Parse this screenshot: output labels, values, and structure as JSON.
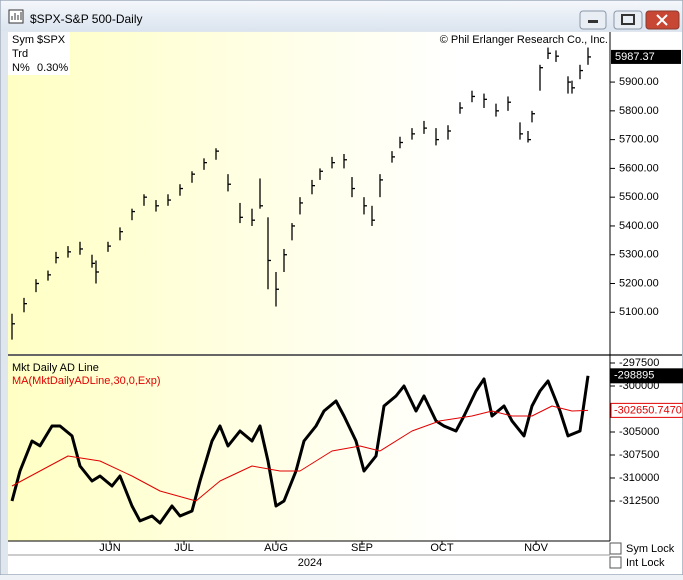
{
  "window": {
    "title": "$SPX-S&P 500-Daily"
  },
  "info": [
    [
      "Sym",
      "$SPX"
    ],
    [
      "Trd"
    ],
    [
      "N%",
      "0.30%"
    ]
  ],
  "copyright": "© Phil Erlanger Research Co., Inc.",
  "checkboxes": [
    "Sym Lock",
    "Int Lock"
  ],
  "chart_data": [
    {
      "type": "ohlc",
      "color": "#000000",
      "x": [
        0,
        3,
        6,
        9,
        11,
        14,
        17,
        20,
        21,
        24,
        27,
        30,
        33,
        36,
        39,
        42,
        45,
        48,
        51,
        54,
        57,
        60,
        62,
        64,
        66,
        68,
        70,
        72,
        75,
        77,
        80,
        83,
        85,
        88,
        90,
        92,
        95,
        97,
        100,
        103,
        106,
        109,
        112,
        115,
        118,
        121,
        124,
        127,
        129,
        130,
        132,
        134,
        136,
        139,
        140,
        142,
        144
      ],
      "high": [
        5095,
        5150,
        5215,
        5245,
        5310,
        5330,
        5345,
        5300,
        5280,
        5345,
        5395,
        5460,
        5510,
        5490,
        5510,
        5545,
        5590,
        5635,
        5670,
        5580,
        5480,
        5460,
        5565,
        5430,
        5240,
        5320,
        5410,
        5500,
        5560,
        5600,
        5640,
        5650,
        5570,
        5500,
        5470,
        5580,
        5660,
        5710,
        5740,
        5765,
        5740,
        5750,
        5830,
        5870,
        5860,
        5825,
        5850,
        5760,
        5730,
        5800,
        5960,
        6020,
        6010,
        5920,
        5905,
        5960,
        6020
      ],
      "low": [
        5005,
        5100,
        5170,
        5210,
        5270,
        5290,
        5300,
        5255,
        5200,
        5310,
        5350,
        5420,
        5470,
        5450,
        5470,
        5505,
        5550,
        5595,
        5630,
        5520,
        5410,
        5400,
        5460,
        5180,
        5120,
        5240,
        5350,
        5440,
        5510,
        5560,
        5600,
        5600,
        5500,
        5440,
        5400,
        5500,
        5620,
        5670,
        5700,
        5720,
        5680,
        5700,
        5790,
        5830,
        5810,
        5780,
        5800,
        5700,
        5690,
        5760,
        5870,
        5980,
        5970,
        5860,
        5860,
        5910,
        5960
      ],
      "close": [
        5060,
        5130,
        5200,
        5230,
        5290,
        5310,
        5320,
        5270,
        5240,
        5330,
        5380,
        5450,
        5500,
        5470,
        5490,
        5530,
        5580,
        5620,
        5660,
        5545,
        5430,
        5420,
        5470,
        5280,
        5180,
        5300,
        5400,
        5480,
        5540,
        5590,
        5620,
        5630,
        5530,
        5470,
        5420,
        5560,
        5640,
        5690,
        5720,
        5740,
        5700,
        5730,
        5810,
        5850,
        5840,
        5800,
        5830,
        5720,
        5700,
        5790,
        5950,
        6000,
        5990,
        5900,
        5880,
        5940,
        5987.37
      ],
      "xlim": [
        -1,
        149.5
      ],
      "ylim": [
        4955,
        6074
      ],
      "yticks": [
        {
          "value": 5100,
          "label": "5100.00"
        },
        {
          "value": 5200,
          "label": "5200.00"
        },
        {
          "value": 5300,
          "label": "5300.00"
        },
        {
          "value": 5400,
          "label": "5400.00"
        },
        {
          "value": 5500,
          "label": "5500.00"
        },
        {
          "value": 5600,
          "label": "5600.00"
        },
        {
          "value": 5700,
          "label": "5700.00"
        },
        {
          "value": 5800,
          "label": "5800.00"
        },
        {
          "value": 5900,
          "label": "5900.00"
        }
      ]
    },
    {
      "type": "line",
      "series": [
        {
          "name": "Mkt Daily AD Line",
          "color": "#000000",
          "width": 3,
          "x": [
            0,
            2,
            5,
            7,
            10,
            12,
            15,
            17,
            20,
            22,
            25,
            27,
            30,
            32,
            35,
            37,
            40,
            42,
            45,
            47,
            50,
            52,
            54,
            57,
            60,
            62,
            64,
            66,
            68,
            71,
            73,
            76,
            78,
            81,
            83,
            86,
            88,
            91,
            93,
            96,
            98,
            101,
            103,
            106,
            108,
            111,
            113,
            116,
            118,
            120,
            123,
            125,
            128,
            130,
            132,
            134,
            137,
            139,
            142,
            144
          ],
          "values": [
            -312500,
            -309240,
            -305980,
            -306500,
            -304350,
            -304350,
            -305430,
            -308700,
            -310330,
            -309780,
            -310870,
            -309780,
            -313040,
            -314670,
            -314130,
            -314890,
            -313040,
            -314130,
            -313590,
            -310330,
            -305980,
            -304350,
            -306520,
            -304890,
            -305980,
            -304350,
            -308150,
            -313040,
            -312500,
            -309240,
            -305980,
            -304350,
            -302720,
            -301630,
            -303260,
            -305980,
            -309240,
            -307610,
            -302170,
            -301090,
            -300000,
            -302720,
            -301090,
            -303800,
            -304350,
            -304890,
            -303260,
            -300540,
            -299240,
            -303260,
            -302170,
            -303800,
            -305430,
            -302170,
            -300540,
            -299460,
            -302720,
            -305430,
            -304890,
            -298895
          ]
        },
        {
          "name": "MA(MktDailyADLine,30,0,Exp)",
          "color": "#e00000",
          "width": 1,
          "x": [
            0,
            7,
            14,
            22,
            30,
            37,
            46,
            52,
            60,
            67,
            72,
            80,
            87,
            92,
            100,
            107,
            115,
            120,
            125,
            130,
            135,
            140,
            144
          ],
          "values": [
            -310870,
            -309240,
            -307610,
            -308150,
            -309780,
            -311410,
            -312500,
            -310330,
            -308700,
            -309240,
            -309240,
            -307070,
            -306520,
            -307070,
            -304890,
            -303800,
            -303260,
            -302720,
            -303260,
            -303260,
            -302170,
            -302720,
            -302650.747
          ],
          "value_labels": [
            null,
            null,
            null,
            null,
            null,
            null,
            null,
            null,
            null,
            null,
            null,
            null,
            null,
            null,
            null,
            null,
            null,
            null,
            null,
            null,
            null,
            null,
            "-302650.7470"
          ]
        }
      ],
      "xlim": [
        -1,
        149.5
      ],
      "ylim": [
        -316850,
        -296740
      ],
      "yticks": [
        -297500,
        -300000,
        -305000,
        -307500,
        -310000,
        -312500
      ],
      "xticks": [
        {
          "value": 24.5,
          "label": "JUN"
        },
        {
          "value": 43,
          "label": "JUL"
        },
        {
          "value": 66,
          "label": "AUG"
        },
        {
          "value": 87.5,
          "label": "SEP"
        },
        {
          "value": 107.5,
          "label": "OCT"
        },
        {
          "value": 131,
          "label": "NOV"
        }
      ],
      "xlabel": "2024"
    }
  ]
}
